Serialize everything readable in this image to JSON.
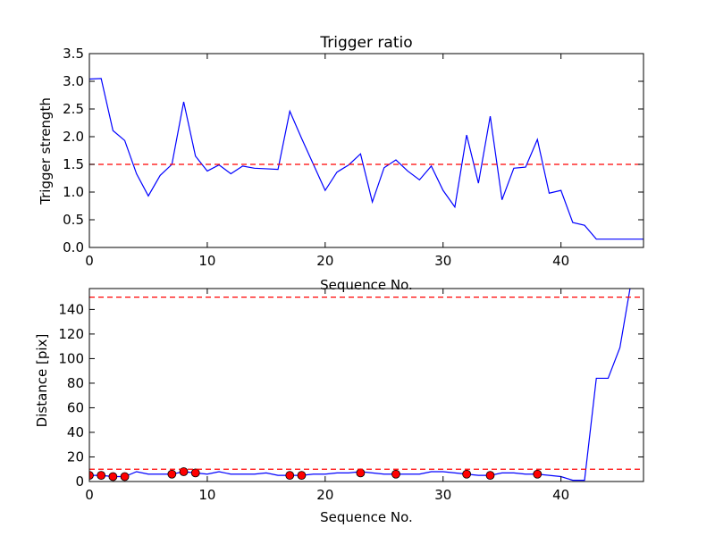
{
  "figure": {
    "background": "#ffffff"
  },
  "chart_data": [
    {
      "type": "line",
      "title": "Trigger ratio",
      "xlabel": "Sequence No.",
      "ylabel": "Trigger strength",
      "xlim": [
        0,
        47
      ],
      "ylim": [
        0,
        3.5
      ],
      "xticks": [
        0,
        10,
        20,
        30,
        40
      ],
      "xtick_labels": [
        "0",
        "10",
        "20",
        "30",
        "40"
      ],
      "yticks": [
        0,
        0.5,
        1,
        1.5,
        2,
        2.5,
        3,
        3.5
      ],
      "ytick_labels": [
        "0.0",
        "0.5",
        "1.0",
        "1.5",
        "2.0",
        "2.5",
        "3.0",
        "3.5"
      ],
      "grid": false,
      "series": [
        {
          "color": "#0000ff",
          "x": [
            0,
            1,
            2,
            3,
            4,
            5,
            6,
            7,
            8,
            9,
            10,
            11,
            12,
            13,
            14,
            15,
            16,
            17,
            18,
            19,
            20,
            21,
            22,
            23,
            24,
            25,
            26,
            27,
            28,
            29,
            30,
            31,
            32,
            33,
            34,
            35,
            36,
            37,
            38,
            39,
            40,
            41,
            42,
            43,
            44,
            45,
            46,
            47
          ],
          "y": [
            3.04,
            3.05,
            2.11,
            1.93,
            1.33,
            0.93,
            1.3,
            1.5,
            2.63,
            1.65,
            1.38,
            1.49,
            1.33,
            1.47,
            1.43,
            1.42,
            1.41,
            2.46,
            1.97,
            1.5,
            1.03,
            1.36,
            1.49,
            1.69,
            0.82,
            1.44,
            1.58,
            1.38,
            1.22,
            1.47,
            1.03,
            0.73,
            2.03,
            1.16,
            2.37,
            0.86,
            1.43,
            1.45,
            1.95,
            0.98,
            1.03,
            0.45,
            0.4,
            0.15,
            0.15,
            0.15,
            0.15,
            0.15
          ]
        }
      ],
      "hlines": [
        {
          "y": 1.5,
          "color": "#ff0000",
          "style": "dashed"
        }
      ]
    },
    {
      "type": "line",
      "xlabel": "Sequence No.",
      "ylabel": "Distance [pix]",
      "xlim": [
        0,
        47
      ],
      "ylim": [
        0,
        157
      ],
      "xticks": [
        0,
        10,
        20,
        30,
        40
      ],
      "xtick_labels": [
        "0",
        "10",
        "20",
        "30",
        "40"
      ],
      "yticks": [
        0,
        20,
        40,
        60,
        80,
        100,
        120,
        140
      ],
      "ytick_labels": [
        "0",
        "20",
        "40",
        "60",
        "80",
        "100",
        "120",
        "140"
      ],
      "grid": false,
      "series": [
        {
          "color": "#0000ff",
          "x": [
            0,
            1,
            2,
            3,
            4,
            5,
            6,
            7,
            8,
            9,
            10,
            11,
            12,
            13,
            14,
            15,
            16,
            17,
            18,
            19,
            20,
            21,
            22,
            23,
            24,
            25,
            26,
            27,
            28,
            29,
            30,
            31,
            32,
            33,
            34,
            35,
            36,
            37,
            38,
            39,
            40,
            41,
            42,
            43,
            44,
            45,
            46
          ],
          "y": [
            5,
            5,
            4,
            4,
            8,
            6,
            6,
            6,
            8,
            7,
            6,
            8,
            6,
            6,
            6,
            7,
            5,
            5,
            5,
            6,
            6,
            7,
            7,
            8,
            7,
            6,
            6,
            6,
            6,
            8,
            8,
            7,
            6,
            5,
            5,
            7,
            7,
            6,
            6,
            5,
            4,
            1,
            1,
            84,
            84,
            109,
            165
          ]
        },
        {
          "color": "#ff0000",
          "marker": "circle",
          "x": [
            0,
            1,
            2,
            3,
            7,
            8,
            9,
            17,
            18,
            23,
            26,
            32,
            34,
            38
          ],
          "y": [
            5,
            5,
            4,
            4,
            6,
            8,
            7,
            5,
            5,
            7,
            6,
            6,
            5,
            6
          ]
        }
      ],
      "hlines": [
        {
          "y": 150,
          "color": "#ff0000",
          "style": "dashed"
        },
        {
          "y": 10,
          "color": "#ff0000",
          "style": "dashed"
        }
      ]
    }
  ]
}
